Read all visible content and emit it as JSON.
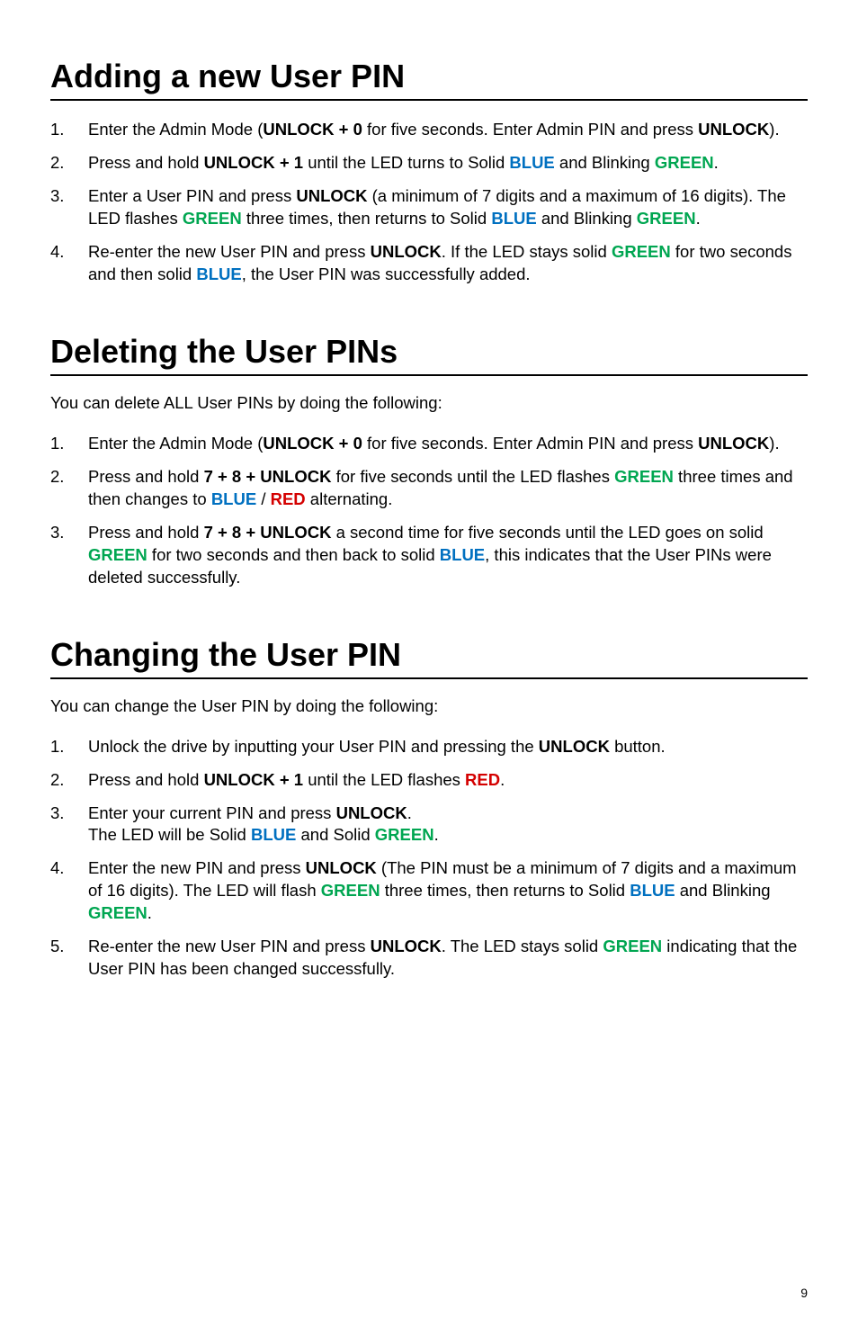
{
  "sections": [
    {
      "title": "Adding a new User PIN",
      "intro": null,
      "steps": [
        [
          {
            "t": "Enter the Admin Mode ("
          },
          {
            "t": "UNLOCK + 0",
            "c": "bold"
          },
          {
            "t": " for five seconds. Enter Admin PIN and press "
          },
          {
            "t": "UNLOCK",
            "c": "bold"
          },
          {
            "t": ")."
          }
        ],
        [
          {
            "t": "Press and hold "
          },
          {
            "t": "UNLOCK + 1",
            "c": "bold"
          },
          {
            "t": " until the LED turns to Solid "
          },
          {
            "t": "BLUE",
            "c": "blue"
          },
          {
            "t": " and Blinking "
          },
          {
            "t": "GREEN",
            "c": "green"
          },
          {
            "t": "."
          }
        ],
        [
          {
            "t": "Enter a User PIN and press "
          },
          {
            "t": "UNLOCK",
            "c": "bold"
          },
          {
            "t": " (a minimum of 7 digits and a maximum of 16 digits). The LED flashes "
          },
          {
            "t": "GREEN",
            "c": "green"
          },
          {
            "t": " three times, then returns to Solid "
          },
          {
            "t": "BLUE",
            "c": "blue"
          },
          {
            "t": " and Blinking "
          },
          {
            "t": "GREEN",
            "c": "green"
          },
          {
            "t": "."
          }
        ],
        [
          {
            "t": "Re-enter the new User PIN and press "
          },
          {
            "t": "UNLOCK",
            "c": "bold"
          },
          {
            "t": ". If the LED stays solid "
          },
          {
            "t": "GREEN",
            "c": "green"
          },
          {
            "t": " for two seconds and then solid "
          },
          {
            "t": "BLUE",
            "c": "blue"
          },
          {
            "t": ", the User PIN was successfully added."
          }
        ]
      ]
    },
    {
      "title": "Deleting the User PINs",
      "intro": "You can delete ALL User PINs by doing the following:",
      "steps": [
        [
          {
            "t": "Enter the Admin Mode ("
          },
          {
            "t": "UNLOCK + 0",
            "c": "bold"
          },
          {
            "t": " for five seconds. Enter Admin PIN and press "
          },
          {
            "t": "UNLOCK",
            "c": "bold"
          },
          {
            "t": ")."
          }
        ],
        [
          {
            "t": "Press and hold "
          },
          {
            "t": "7 + 8 + UNLOCK",
            "c": "bold"
          },
          {
            "t": " for five seconds until the LED flashes "
          },
          {
            "t": "GREEN",
            "c": "green"
          },
          {
            "t": " three times and then changes to "
          },
          {
            "t": "BLUE",
            "c": "blue"
          },
          {
            "t": " / "
          },
          {
            "t": "RED",
            "c": "red"
          },
          {
            "t": " alternating."
          }
        ],
        [
          {
            "t": "Press and hold "
          },
          {
            "t": "7 + 8 + UNLOCK",
            "c": "bold"
          },
          {
            "t": "  a second time for five seconds until the LED goes on solid "
          },
          {
            "t": "GREEN",
            "c": "green"
          },
          {
            "t": " for two seconds and then back to solid "
          },
          {
            "t": "BLUE",
            "c": "blue"
          },
          {
            "t": ", this indicates that the User PINs were deleted successfully."
          }
        ]
      ]
    },
    {
      "title": "Changing the User PIN",
      "intro": "You can change the User PIN by doing the following:",
      "steps": [
        [
          {
            "t": "Unlock the drive by inputting your User PIN and pressing the "
          },
          {
            "t": "UNLOCK",
            "c": "bold"
          },
          {
            "t": " button."
          }
        ],
        [
          {
            "t": "Press and hold "
          },
          {
            "t": "UNLOCK + 1",
            "c": "bold"
          },
          {
            "t": " until the LED flashes "
          },
          {
            "t": "RED",
            "c": "red"
          },
          {
            "t": "."
          }
        ],
        [
          {
            "t": "Enter your current PIN and press "
          },
          {
            "t": "UNLOCK",
            "c": "bold"
          },
          {
            "t": "."
          },
          {
            "t": "\n"
          },
          {
            "t": "The LED will be Solid "
          },
          {
            "t": "BLUE",
            "c": "blue"
          },
          {
            "t": " and Solid "
          },
          {
            "t": "GREEN",
            "c": "green"
          },
          {
            "t": "."
          }
        ],
        [
          {
            "t": "Enter the new PIN and press "
          },
          {
            "t": "UNLOCK",
            "c": "bold"
          },
          {
            "t": " (The PIN must be a minimum of 7 digits and a maximum of 16 digits). The LED will flash "
          },
          {
            "t": "GREEN",
            "c": "green"
          },
          {
            "t": " three times, then returns to Solid "
          },
          {
            "t": "BLUE",
            "c": "blue"
          },
          {
            "t": " and Blinking "
          },
          {
            "t": "GREEN",
            "c": "green"
          },
          {
            "t": "."
          }
        ],
        [
          {
            "t": "Re-enter the new User PIN and press "
          },
          {
            "t": "UNLOCK",
            "c": "bold"
          },
          {
            "t": ". The LED stays solid "
          },
          {
            "t": "GREEN",
            "c": "green"
          },
          {
            "t": " indicating that the User PIN has been changed successfully."
          }
        ]
      ]
    }
  ],
  "pageNumber": "9"
}
